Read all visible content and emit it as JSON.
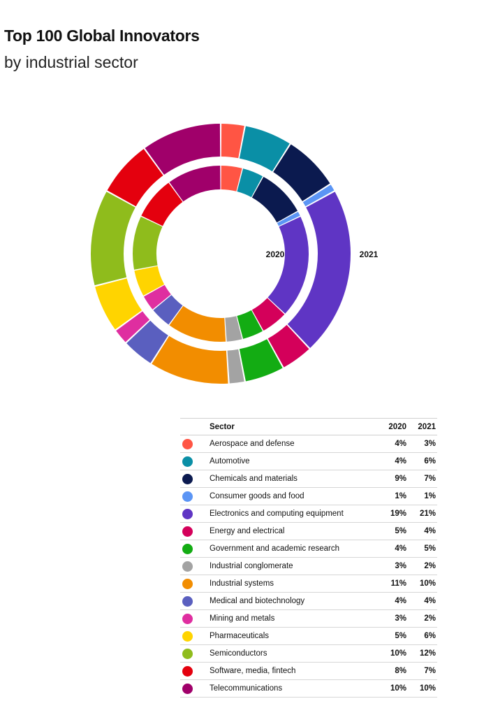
{
  "title": "Top 100 Global Innovators",
  "subtitle": "by industrial sector",
  "table": {
    "header_sector": "Sector",
    "header_2020": "2020",
    "header_2021": "2021"
  },
  "chart_data": {
    "type": "pie",
    "variant": "nested donut",
    "inner_ring_label": "2020",
    "outer_ring_label": "2021",
    "categories": [
      "Aerospace and defense",
      "Automotive",
      "Chemicals and materials",
      "Consumer goods and food",
      "Electronics and computing equipment",
      "Energy and electrical",
      "Government and academic research",
      "Industrial conglomerate",
      "Industrial systems",
      "Medical and biotechnology",
      "Mining and metals",
      "Pharmaceuticals",
      "Semiconductors",
      "Software, media, fintech",
      "Telecommunications"
    ],
    "colors": [
      "#ff5544",
      "#0a8fa6",
      "#0b1a4f",
      "#5b95f5",
      "#5f35c4",
      "#d4005a",
      "#13ac13",
      "#a3a3a3",
      "#f28d00",
      "#5a5fbf",
      "#df2ea0",
      "#ffd400",
      "#8fbc1c",
      "#e4000e",
      "#a0006a"
    ],
    "series": [
      {
        "name": "2020",
        "values": [
          4,
          4,
          9,
          1,
          19,
          5,
          4,
          3,
          11,
          4,
          3,
          5,
          10,
          8,
          10
        ],
        "labels": [
          "4%",
          "4%",
          "9%",
          "1%",
          "19%",
          "5%",
          "4%",
          "3%",
          "11%",
          "4%",
          "3%",
          "5%",
          "10%",
          "8%",
          "10%"
        ]
      },
      {
        "name": "2021",
        "values": [
          3,
          6,
          7,
          1,
          21,
          4,
          5,
          2,
          10,
          4,
          2,
          6,
          12,
          7,
          10
        ],
        "labels": [
          "3%",
          "6%",
          "7%",
          "1%",
          "21%",
          "4%",
          "5%",
          "2%",
          "10%",
          "4%",
          "2%",
          "6%",
          "12%",
          "7%",
          "10%"
        ]
      }
    ]
  }
}
